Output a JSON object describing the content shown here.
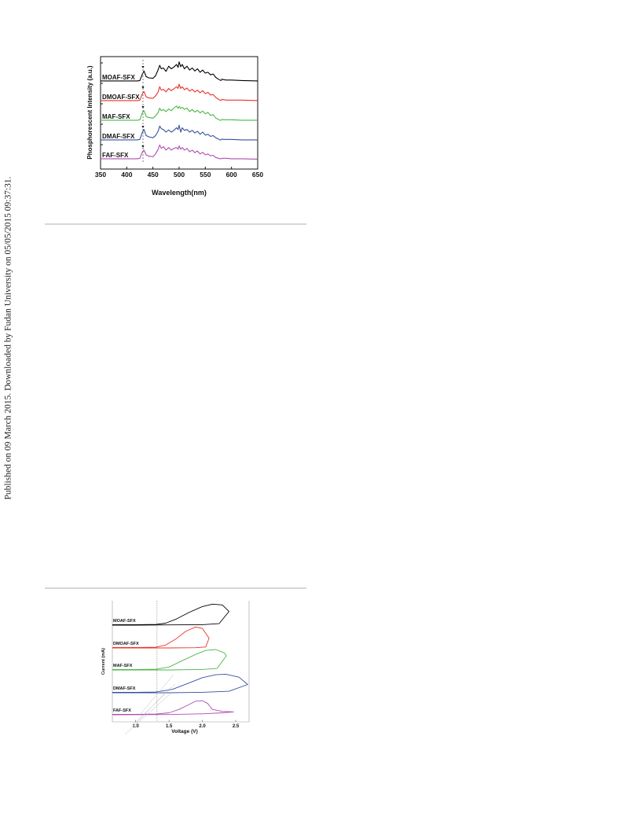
{
  "margin_note": "Published on 09 March 2015. Downloaded by Fudan University on 05/05/2015 09:37:31.",
  "figures": [
    {
      "chart_data": {
        "type": "line",
        "xlabel": "Wavelength(nm)",
        "ylabel": "Phosphorescent Intensity (a.u.)",
        "xlim": [
          350,
          650
        ],
        "xticks": [
          350,
          400,
          450,
          500,
          550,
          600,
          650
        ],
        "series": [
          {
            "name": "MOAF-SFX",
            "color": "#000000",
            "offset": 4,
            "x": [
              350,
              420,
              425,
              430,
              433,
              437,
              442,
              450,
              455,
              460,
              463,
              466,
              470,
              475,
              480,
              485,
              490,
              495,
              498,
              500,
              503,
              506,
              510,
              515,
              520,
              525,
              530,
              535,
              540,
              545,
              550,
              555,
              560,
              565,
              570,
              575,
              578,
              580,
              582,
              585,
              590,
              600,
              620,
              650
            ],
            "y": [
              0.02,
              0.02,
              0.03,
              0.18,
              0.25,
              0.12,
              0.09,
              0.08,
              0.14,
              0.28,
              0.38,
              0.3,
              0.32,
              0.24,
              0.36,
              0.3,
              0.34,
              0.4,
              0.33,
              0.46,
              0.35,
              0.4,
              0.3,
              0.36,
              0.27,
              0.32,
              0.25,
              0.3,
              0.22,
              0.27,
              0.2,
              0.22,
              0.16,
              0.18,
              0.1,
              0.06,
              0.04,
              0.03,
              0.06,
              0.05,
              0.04,
              0.04,
              0.03,
              0.02
            ]
          },
          {
            "name": "DMOAF-SFX",
            "color": "#e8332a",
            "offset": 3,
            "x": [
              350,
              420,
              425,
              430,
              433,
              437,
              442,
              450,
              455,
              460,
              463,
              466,
              470,
              475,
              480,
              485,
              490,
              495,
              498,
              500,
              503,
              506,
              510,
              515,
              520,
              525,
              530,
              535,
              540,
              545,
              550,
              555,
              560,
              565,
              570,
              575,
              578,
              580,
              582,
              585,
              590,
              600,
              620,
              650
            ],
            "y": [
              0.02,
              0.02,
              0.03,
              0.18,
              0.23,
              0.11,
              0.08,
              0.07,
              0.13,
              0.22,
              0.34,
              0.26,
              0.28,
              0.22,
              0.3,
              0.25,
              0.29,
              0.34,
              0.3,
              0.4,
              0.3,
              0.34,
              0.27,
              0.31,
              0.24,
              0.28,
              0.22,
              0.26,
              0.2,
              0.25,
              0.18,
              0.21,
              0.15,
              0.16,
              0.09,
              0.05,
              0.03,
              0.02,
              0.05,
              0.04,
              0.03,
              0.03,
              0.03,
              0.02
            ]
          },
          {
            "name": "MAF-SFX",
            "color": "#4cb648",
            "offset": 2,
            "x": [
              350,
              420,
              425,
              430,
              433,
              437,
              442,
              450,
              455,
              460,
              463,
              466,
              470,
              475,
              480,
              485,
              490,
              495,
              498,
              500,
              503,
              506,
              510,
              515,
              520,
              525,
              530,
              535,
              540,
              545,
              550,
              555,
              560,
              565,
              570,
              575,
              578,
              580,
              582,
              585,
              590,
              600,
              620,
              650
            ],
            "y": [
              0.02,
              0.02,
              0.03,
              0.2,
              0.24,
              0.11,
              0.08,
              0.07,
              0.12,
              0.2,
              0.3,
              0.24,
              0.27,
              0.22,
              0.28,
              0.24,
              0.3,
              0.35,
              0.29,
              0.34,
              0.29,
              0.32,
              0.27,
              0.3,
              0.22,
              0.27,
              0.21,
              0.25,
              0.19,
              0.23,
              0.17,
              0.2,
              0.13,
              0.15,
              0.07,
              0.04,
              0.02,
              0.02,
              0.04,
              0.03,
              0.03,
              0.03,
              0.02,
              0.02
            ]
          },
          {
            "name": "DMAF-SFX",
            "color": "#3550a0",
            "offset": 1,
            "x": [
              350,
              420,
              425,
              430,
              433,
              437,
              442,
              450,
              455,
              460,
              463,
              466,
              470,
              475,
              480,
              485,
              490,
              495,
              498,
              500,
              503,
              506,
              510,
              515,
              520,
              525,
              530,
              535,
              540,
              545,
              550,
              555,
              560,
              565,
              570,
              575,
              578,
              580,
              582,
              585,
              590,
              600,
              620,
              650
            ],
            "y": [
              0.02,
              0.02,
              0.03,
              0.2,
              0.26,
              0.12,
              0.09,
              0.07,
              0.12,
              0.22,
              0.34,
              0.28,
              0.26,
              0.2,
              0.25,
              0.2,
              0.24,
              0.3,
              0.26,
              0.36,
              0.2,
              0.3,
              0.24,
              0.26,
              0.2,
              0.24,
              0.18,
              0.22,
              0.15,
              0.2,
              0.13,
              0.15,
              0.1,
              0.12,
              0.07,
              0.04,
              0.02,
              0.02,
              0.04,
              0.03,
              0.03,
              0.03,
              0.02,
              0.02
            ]
          },
          {
            "name": "FAF-SFX",
            "color": "#b04cb3",
            "offset": 0,
            "x": [
              350,
              420,
              425,
              430,
              433,
              437,
              442,
              450,
              455,
              460,
              463,
              466,
              470,
              475,
              480,
              485,
              490,
              495,
              498,
              500,
              503,
              506,
              510,
              515,
              520,
              525,
              530,
              535,
              540,
              545,
              550,
              555,
              560,
              565,
              570,
              575,
              578,
              580,
              582,
              585,
              590,
              600,
              620,
              650
            ],
            "y": [
              0.02,
              0.02,
              0.03,
              0.18,
              0.22,
              0.11,
              0.08,
              0.07,
              0.13,
              0.24,
              0.34,
              0.26,
              0.3,
              0.22,
              0.28,
              0.22,
              0.26,
              0.28,
              0.24,
              0.32,
              0.24,
              0.28,
              0.22,
              0.26,
              0.18,
              0.22,
              0.16,
              0.2,
              0.13,
              0.17,
              0.11,
              0.13,
              0.09,
              0.1,
              0.05,
              0.03,
              0.02,
              0.02,
              0.03,
              0.03,
              0.03,
              0.02,
              0.02,
              0.01
            ]
          }
        ],
        "annotations": {
          "dashed_vline_x": 431,
          "arrows": true
        }
      }
    },
    {
      "chart_data": {
        "type": "line",
        "xlabel": "Voltage (V)",
        "ylabel": "Current (mA)",
        "xlim": [
          0.65,
          2.7
        ],
        "xticks": [
          1.0,
          1.5,
          2.0,
          2.5
        ],
        "series": [
          {
            "name": "MOAF-SFX",
            "color": "#000000",
            "offset": 4,
            "forward": [
              [
                0.65,
                0.02
              ],
              [
                1.0,
                0.02
              ],
              [
                1.3,
                0.03
              ],
              [
                1.45,
                0.08
              ],
              [
                1.6,
                0.24
              ],
              [
                1.8,
                0.52
              ],
              [
                2.0,
                0.76
              ],
              [
                2.15,
                0.86
              ],
              [
                2.3,
                0.83
              ],
              [
                2.4,
                0.56
              ]
            ],
            "reverse": [
              [
                2.4,
                0.56
              ],
              [
                2.25,
                0.06
              ],
              [
                2.0,
                0.02
              ],
              [
                1.5,
                0.01
              ],
              [
                1.0,
                0.0
              ],
              [
                0.65,
                0.0
              ]
            ]
          },
          {
            "name": "DMOAF-SFX",
            "color": "#e8332a",
            "offset": 3,
            "forward": [
              [
                0.65,
                0.02
              ],
              [
                1.0,
                0.02
              ],
              [
                1.3,
                0.03
              ],
              [
                1.45,
                0.12
              ],
              [
                1.6,
                0.36
              ],
              [
                1.75,
                0.68
              ],
              [
                1.9,
                0.86
              ],
              [
                2.0,
                0.8
              ],
              [
                2.1,
                0.4
              ]
            ],
            "reverse": [
              [
                2.1,
                0.4
              ],
              [
                2.05,
                0.04
              ],
              [
                1.9,
                0.01
              ],
              [
                1.5,
                0.0
              ],
              [
                0.65,
                0.0
              ]
            ]
          },
          {
            "name": "MAF-SFX",
            "color": "#4cb648",
            "offset": 2,
            "forward": [
              [
                0.65,
                0.02
              ],
              [
                1.0,
                0.02
              ],
              [
                1.3,
                0.03
              ],
              [
                1.5,
                0.12
              ],
              [
                1.7,
                0.38
              ],
              [
                1.9,
                0.64
              ],
              [
                2.05,
                0.8
              ],
              [
                2.2,
                0.84
              ],
              [
                2.33,
                0.7
              ],
              [
                2.36,
                0.58
              ]
            ],
            "reverse": [
              [
                2.36,
                0.58
              ],
              [
                2.22,
                0.06
              ],
              [
                2.0,
                0.02
              ],
              [
                1.5,
                0.0
              ],
              [
                0.65,
                0.0
              ]
            ]
          },
          {
            "name": "DMAF-SFX",
            "color": "#3550a0",
            "offset": 1,
            "forward": [
              [
                0.65,
                0.02
              ],
              [
                1.0,
                0.02
              ],
              [
                1.3,
                0.03
              ],
              [
                1.55,
                0.14
              ],
              [
                1.8,
                0.4
              ],
              [
                2.0,
                0.62
              ],
              [
                2.2,
                0.74
              ],
              [
                2.35,
                0.76
              ],
              [
                2.55,
                0.64
              ],
              [
                2.68,
                0.34
              ]
            ],
            "reverse": [
              [
                2.68,
                0.34
              ],
              [
                2.4,
                0.06
              ],
              [
                2.0,
                0.02
              ],
              [
                1.5,
                0.0
              ],
              [
                0.65,
                0.0
              ]
            ]
          },
          {
            "name": "FAF-SFX",
            "color": "#b04cb3",
            "offset": 0,
            "forward": [
              [
                0.65,
                0.02
              ],
              [
                1.0,
                0.02
              ],
              [
                1.3,
                0.03
              ],
              [
                1.5,
                0.08
              ],
              [
                1.65,
                0.22
              ],
              [
                1.8,
                0.42
              ],
              [
                1.9,
                0.56
              ],
              [
                2.0,
                0.58
              ],
              [
                2.08,
                0.46
              ],
              [
                2.15,
                0.22
              ],
              [
                2.3,
                0.14
              ],
              [
                2.47,
                0.12
              ]
            ],
            "reverse": [
              [
                2.47,
                0.12
              ],
              [
                2.3,
                0.08
              ],
              [
                2.0,
                0.04
              ],
              [
                1.5,
                0.01
              ],
              [
                0.65,
                0.0
              ]
            ]
          }
        ],
        "annotations": {
          "dotted_vline_x": 1.32,
          "onset_tangents": true
        }
      }
    }
  ]
}
